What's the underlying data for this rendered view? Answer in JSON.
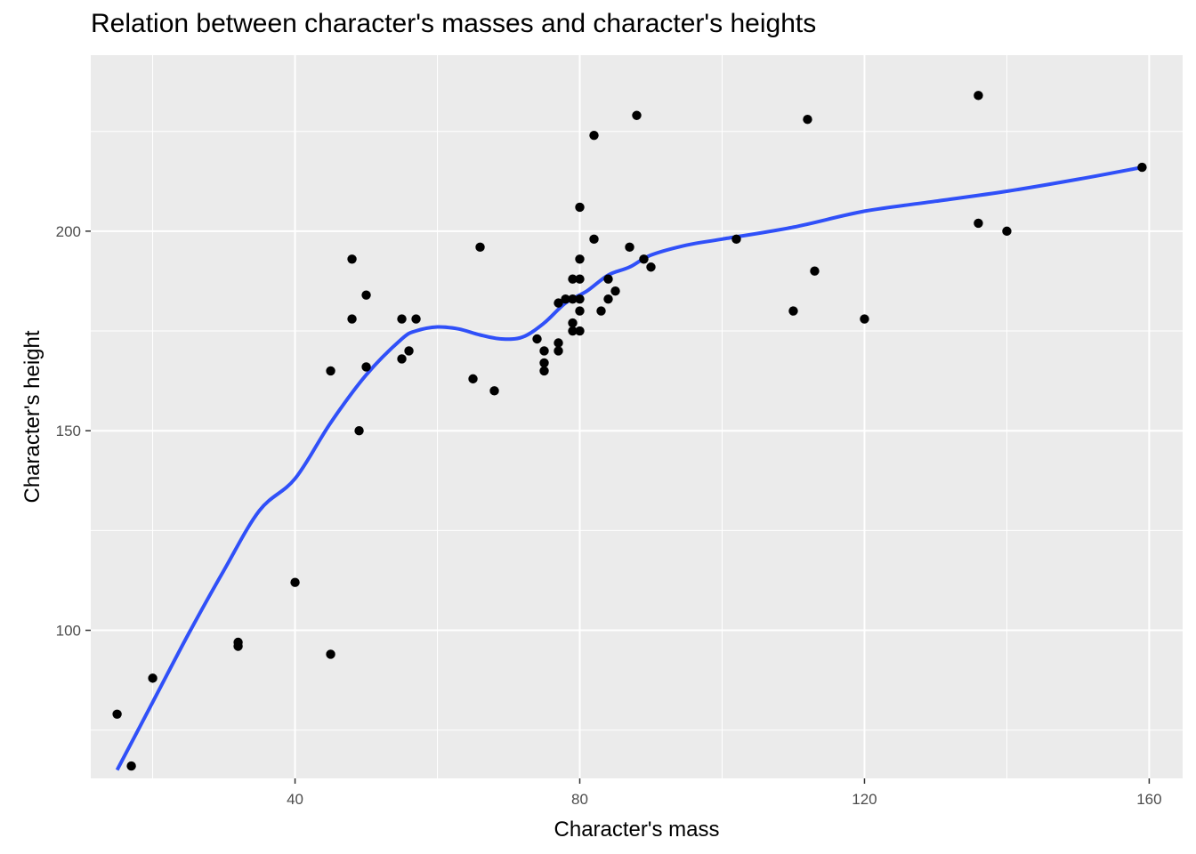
{
  "chart_data": {
    "type": "scatter",
    "title": "Relation between character's masses and character's heights",
    "xlabel": "Character's mass",
    "ylabel": "Character's height",
    "xlim": [
      11.3,
      164.7
    ],
    "ylim": [
      62.9,
      244.1
    ],
    "x_ticks": [
      40,
      80,
      120,
      160
    ],
    "x_minor_ticks": [
      20,
      60,
      100,
      140
    ],
    "y_ticks": [
      100,
      150,
      200
    ],
    "y_minor_ticks": [
      75,
      125,
      175,
      225
    ],
    "grid": true,
    "background": "#ebebeb",
    "point_color": "#000000",
    "smooth_color": "#3050f8",
    "points": [
      [
        15,
        79
      ],
      [
        17,
        66
      ],
      [
        20,
        88
      ],
      [
        32,
        97
      ],
      [
        32,
        96
      ],
      [
        40,
        112
      ],
      [
        45,
        94
      ],
      [
        45,
        165
      ],
      [
        48,
        178
      ],
      [
        48,
        193
      ],
      [
        49,
        150
      ],
      [
        50,
        184
      ],
      [
        50,
        166
      ],
      [
        55,
        178
      ],
      [
        55,
        168
      ],
      [
        56,
        170
      ],
      [
        57,
        178
      ],
      [
        65,
        163
      ],
      [
        66,
        196
      ],
      [
        68,
        160
      ],
      [
        74,
        173
      ],
      [
        75,
        170
      ],
      [
        75,
        167
      ],
      [
        75,
        165
      ],
      [
        77,
        182
      ],
      [
        77,
        172
      ],
      [
        77,
        170
      ],
      [
        78,
        183
      ],
      [
        79,
        188
      ],
      [
        79,
        183
      ],
      [
        79,
        177
      ],
      [
        79,
        175
      ],
      [
        80,
        206
      ],
      [
        80,
        193
      ],
      [
        80,
        188
      ],
      [
        80,
        183
      ],
      [
        80,
        180
      ],
      [
        80,
        175
      ],
      [
        82,
        224
      ],
      [
        82,
        198
      ],
      [
        83,
        180
      ],
      [
        84,
        188
      ],
      [
        84,
        183
      ],
      [
        85,
        185
      ],
      [
        87,
        196
      ],
      [
        88,
        229
      ],
      [
        89,
        193
      ],
      [
        90,
        191
      ],
      [
        102,
        198
      ],
      [
        110,
        180
      ],
      [
        112,
        228
      ],
      [
        113,
        190
      ],
      [
        120,
        178
      ],
      [
        136,
        234
      ],
      [
        136,
        202
      ],
      [
        140,
        200
      ],
      [
        159,
        216
      ]
    ],
    "smooth_line": [
      [
        15,
        65
      ],
      [
        20,
        82
      ],
      [
        25,
        99
      ],
      [
        30,
        115
      ],
      [
        35,
        130
      ],
      [
        40,
        138
      ],
      [
        45,
        152
      ],
      [
        50,
        164
      ],
      [
        55,
        173
      ],
      [
        57,
        175
      ],
      [
        60,
        176
      ],
      [
        63,
        175.5
      ],
      [
        66,
        174
      ],
      [
        69,
        173
      ],
      [
        72,
        173.5
      ],
      [
        75,
        177
      ],
      [
        78,
        182
      ],
      [
        81,
        185
      ],
      [
        84,
        189
      ],
      [
        87,
        191
      ],
      [
        90,
        194
      ],
      [
        95,
        196.5
      ],
      [
        100,
        198
      ],
      [
        110,
        201
      ],
      [
        120,
        205
      ],
      [
        130,
        207.5
      ],
      [
        140,
        210
      ],
      [
        150,
        213
      ],
      [
        159,
        216
      ]
    ]
  }
}
